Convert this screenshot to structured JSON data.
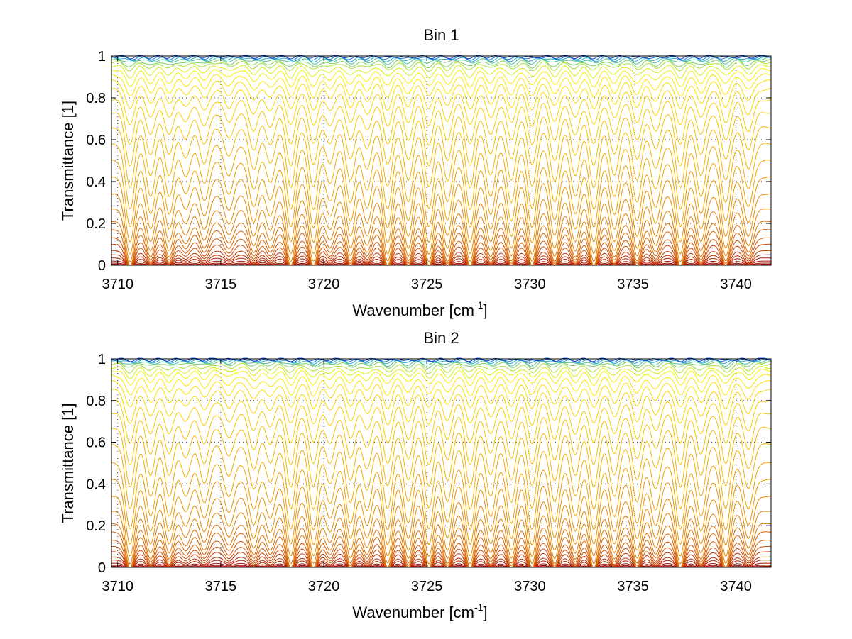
{
  "chart_data": [
    {
      "type": "line",
      "title": "Bin 1",
      "xlabel": "Wavenumber [cm",
      "xlabel_exponent": "-1",
      "xlabel_close": "]",
      "ylabel": "Transmittance [1]",
      "xlim": [
        3709.7,
        3741.7
      ],
      "ylim": [
        0,
        1
      ],
      "xticks": [
        3710,
        3715,
        3720,
        3725,
        3730,
        3735,
        3740
      ],
      "xtick_labels": [
        "3710",
        "3715",
        "3720",
        "3725",
        "3730",
        "3735",
        "3740"
      ],
      "yticks": [
        0,
        0.2,
        0.4,
        0.6,
        0.8,
        1
      ],
      "ytick_labels": [
        "0",
        "0.2",
        "0.4",
        "0.6",
        "0.8",
        "1"
      ],
      "grid": true,
      "legend": "none",
      "line_positions": [
        3710.6,
        3711.6,
        3712.5,
        3713.3,
        3714.2,
        3715.4,
        3716.6,
        3717.4,
        3718.4,
        3719.5,
        3720.3,
        3721.3,
        3722.1,
        3723.1,
        3724.1,
        3725.1,
        3726.0,
        3727.1,
        3728.1,
        3729.1,
        3730.1,
        3731.2,
        3732.2,
        3733.1,
        3734.1,
        3735.2,
        3736.1,
        3737.3,
        3738.3,
        3739.5,
        3740.6
      ],
      "line_strengths": [
        1.0,
        0.8,
        0.8,
        0.5,
        0.6,
        0.5,
        0.7,
        0.6,
        1.0,
        1.0,
        0.6,
        0.9,
        0.7,
        1.0,
        0.9,
        1.0,
        0.9,
        1.0,
        0.8,
        0.9,
        1.0,
        0.9,
        0.8,
        1.0,
        0.8,
        0.9,
        0.7,
        1.0,
        0.8,
        0.9,
        0.7
      ],
      "series_baselines": [
        0.0,
        0.005,
        0.01,
        0.02,
        0.035,
        0.05,
        0.07,
        0.1,
        0.13,
        0.17,
        0.21,
        0.27,
        0.34,
        0.42,
        0.5,
        0.58,
        0.66,
        0.73,
        0.79,
        0.84,
        0.88,
        0.91,
        0.935,
        0.955,
        0.97,
        0.98,
        0.988,
        0.993,
        0.997,
        1.0
      ],
      "series_colors": [
        "#8b0000",
        "#940500",
        "#9e0c00",
        "#a81500",
        "#b31f00",
        "#bd2b00",
        "#c43800",
        "#cc4800",
        "#d35600",
        "#d86400",
        "#dd7200",
        "#e27f00",
        "#e68a00",
        "#eb9600",
        "#efa200",
        "#f2ad00",
        "#f5b800",
        "#f7c200",
        "#f9cc00",
        "#fbd500",
        "#fcdd00",
        "#fde600",
        "#f4ef00",
        "#d6ef10",
        "#a9e03a",
        "#7ad066",
        "#4fc09a",
        "#2aa8cc",
        "#1577dd",
        "#0a3fcf"
      ]
    },
    {
      "type": "line",
      "title": "Bin 2",
      "xlabel": "Wavenumber [cm",
      "xlabel_exponent": "-1",
      "xlabel_close": "]",
      "ylabel": "Transmittance [1]",
      "xlim": [
        3709.7,
        3741.7
      ],
      "ylim": [
        0,
        1
      ],
      "xticks": [
        3710,
        3715,
        3720,
        3725,
        3730,
        3735,
        3740
      ],
      "xtick_labels": [
        "3710",
        "3715",
        "3720",
        "3725",
        "3730",
        "3735",
        "3740"
      ],
      "yticks": [
        0,
        0.2,
        0.4,
        0.6,
        0.8,
        1
      ],
      "ytick_labels": [
        "0",
        "0.2",
        "0.4",
        "0.6",
        "0.8",
        "1"
      ],
      "grid": true,
      "legend": "none",
      "line_positions": [
        3710.6,
        3711.6,
        3712.5,
        3713.3,
        3714.2,
        3715.4,
        3716.6,
        3717.4,
        3718.4,
        3719.5,
        3720.3,
        3721.3,
        3722.1,
        3723.1,
        3724.1,
        3725.1,
        3726.0,
        3727.1,
        3728.1,
        3729.1,
        3730.1,
        3731.2,
        3732.2,
        3733.1,
        3734.1,
        3735.2,
        3736.1,
        3737.3,
        3738.3,
        3739.5,
        3740.6
      ],
      "line_strengths": [
        1.0,
        0.8,
        0.8,
        0.5,
        0.6,
        0.5,
        0.7,
        0.6,
        1.0,
        1.0,
        0.6,
        0.9,
        0.7,
        1.0,
        0.9,
        1.0,
        0.9,
        1.0,
        0.8,
        0.9,
        1.0,
        0.9,
        0.8,
        1.0,
        0.8,
        0.9,
        0.7,
        1.0,
        0.8,
        1.0,
        0.7
      ],
      "series_baselines": [
        0.0,
        0.005,
        0.01,
        0.02,
        0.035,
        0.05,
        0.075,
        0.1,
        0.13,
        0.17,
        0.21,
        0.27,
        0.34,
        0.42,
        0.5,
        0.59,
        0.67,
        0.74,
        0.8,
        0.85,
        0.89,
        0.92,
        0.945,
        0.96,
        0.975,
        0.985,
        0.99,
        0.995,
        0.998,
        1.0
      ],
      "series_colors": [
        "#8b0000",
        "#940500",
        "#9e0c00",
        "#a81500",
        "#b31f00",
        "#bd2b00",
        "#c43800",
        "#cc4800",
        "#d35600",
        "#d86400",
        "#dd7200",
        "#e27f00",
        "#e68a00",
        "#eb9600",
        "#efa200",
        "#f2ad00",
        "#f5b800",
        "#f7c200",
        "#f9cc00",
        "#fbd500",
        "#fcdd00",
        "#fde600",
        "#f4ef00",
        "#d6ef10",
        "#a9e03a",
        "#7ad066",
        "#4fc09a",
        "#2aa8cc",
        "#1577dd",
        "#0a3fcf"
      ]
    }
  ]
}
